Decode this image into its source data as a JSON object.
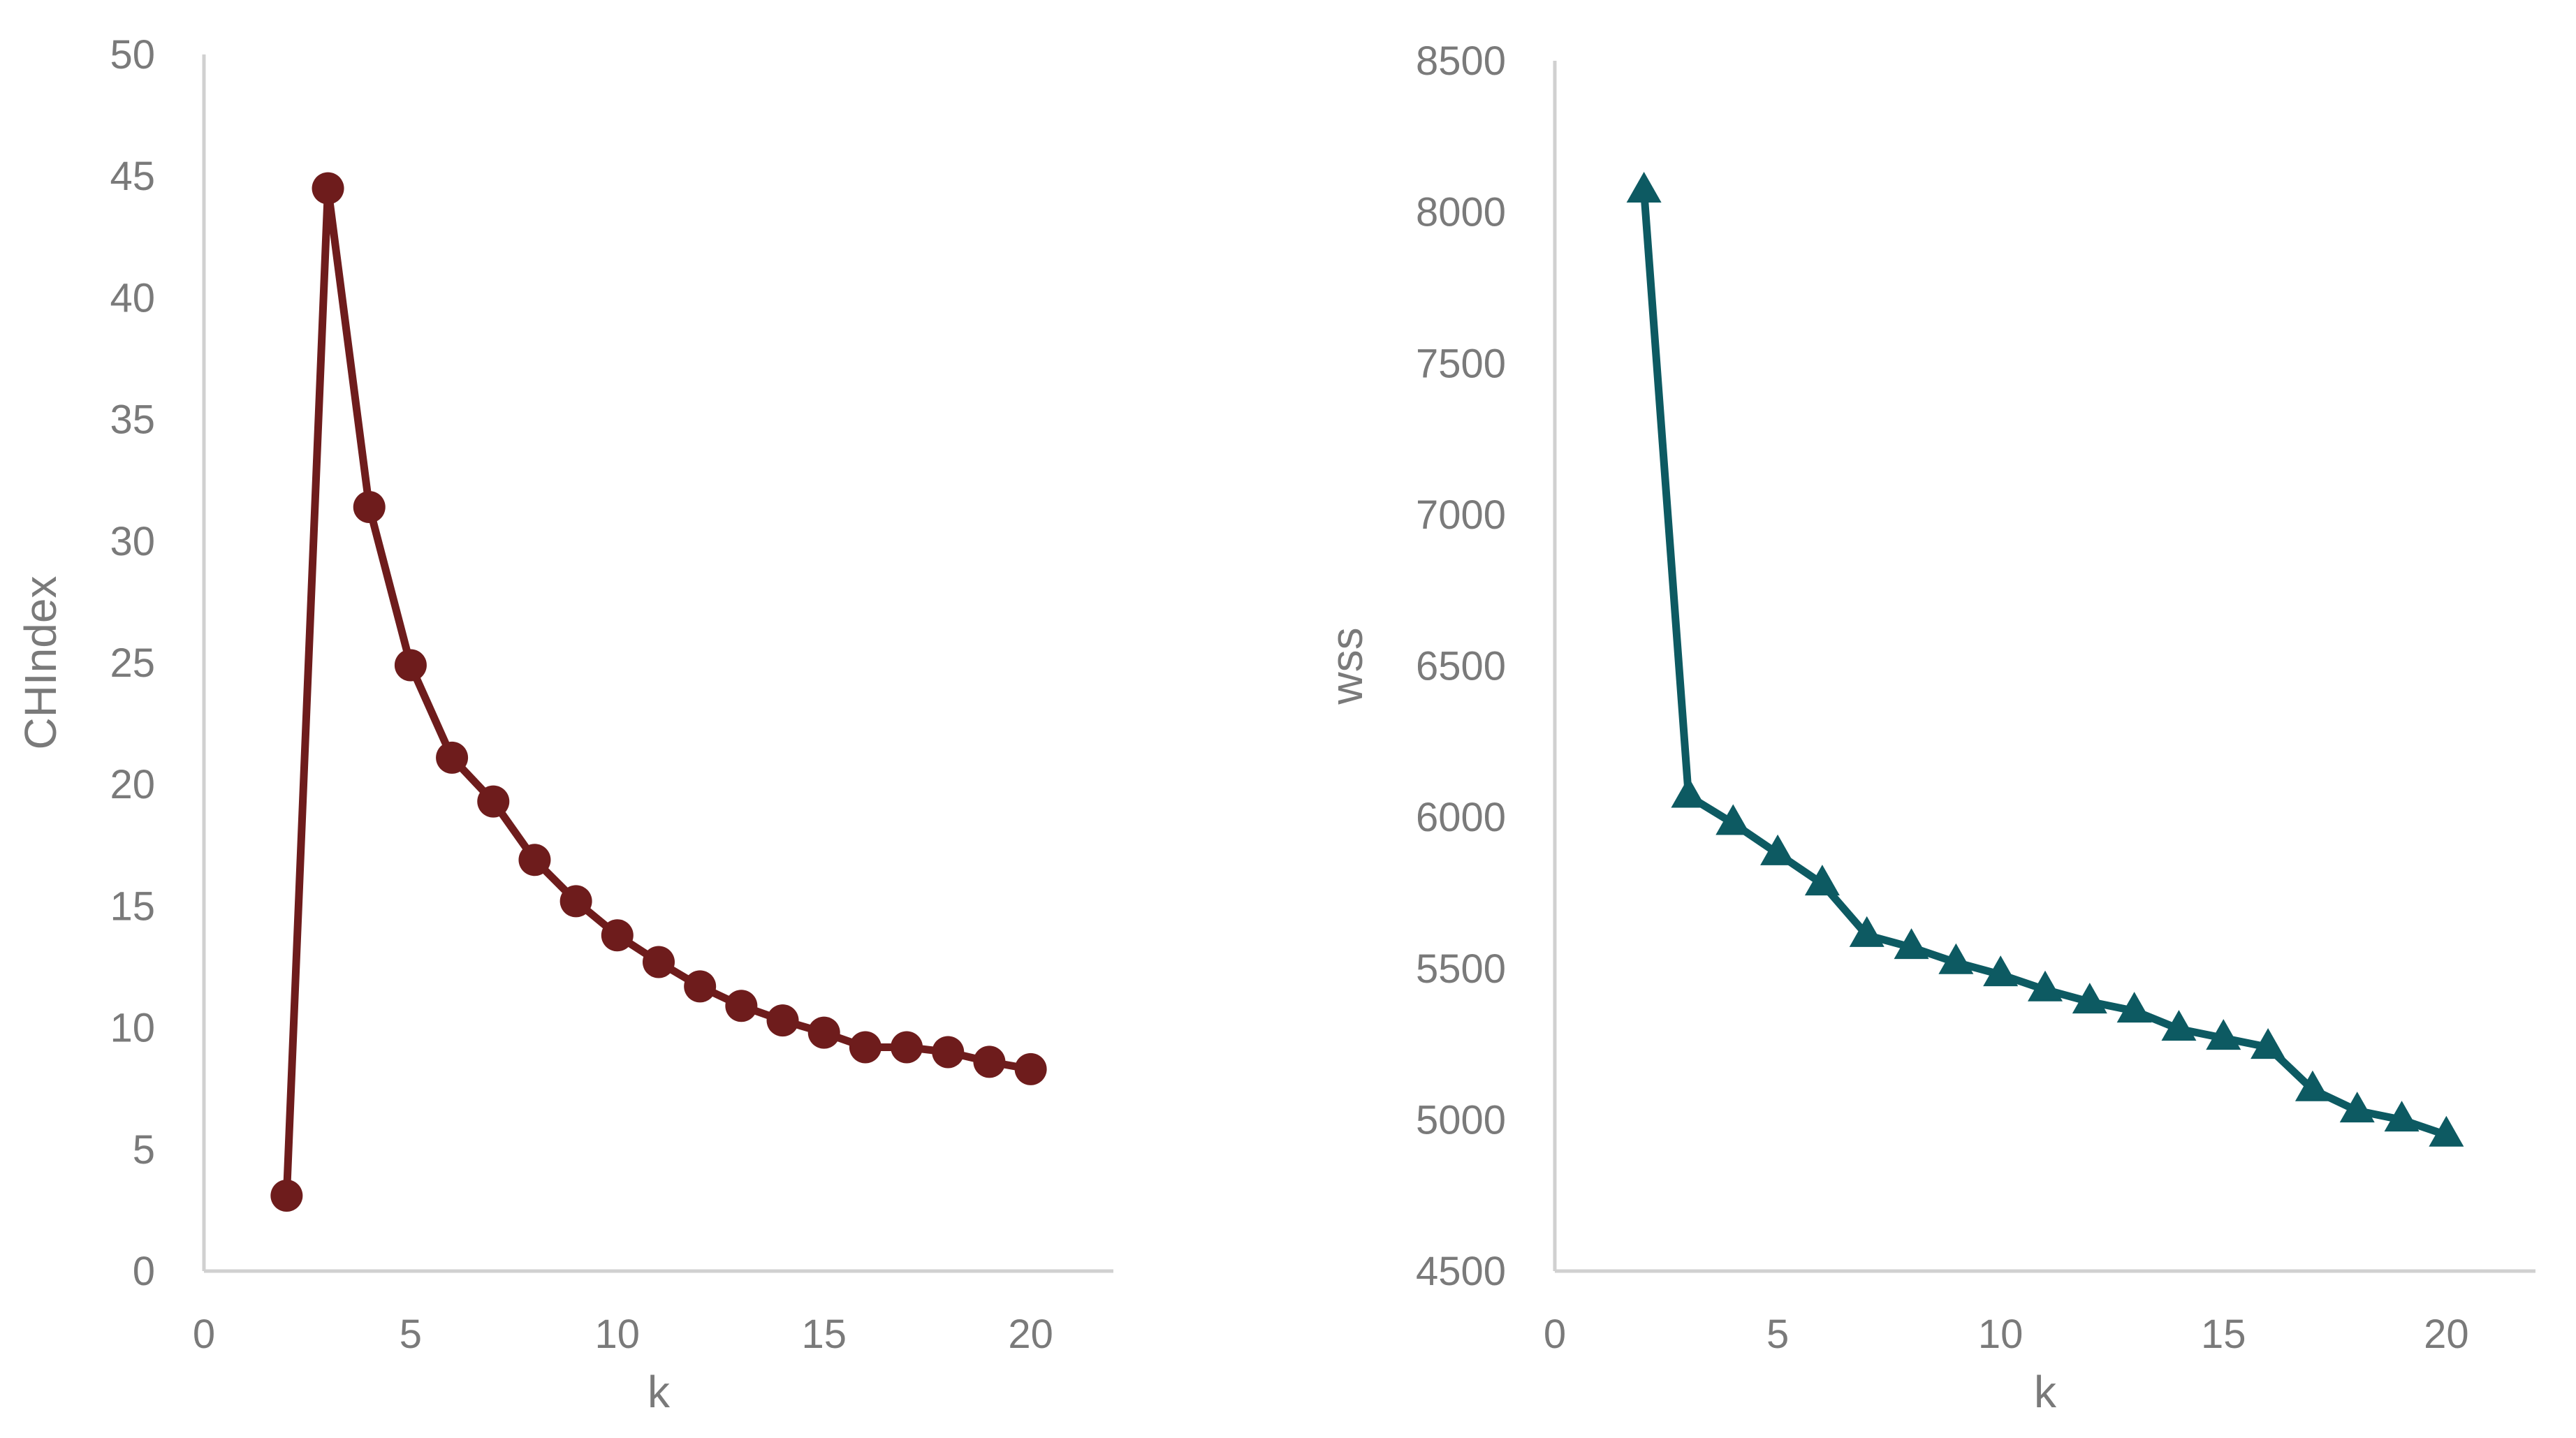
{
  "chart_data": [
    {
      "type": "line",
      "xlabel": "k",
      "ylabel": "CHIndex",
      "xlim": [
        0,
        22
      ],
      "ylim": [
        0,
        50
      ],
      "x_ticks": [
        0,
        5,
        10,
        15,
        20
      ],
      "y_ticks": [
        0,
        5,
        10,
        15,
        20,
        25,
        30,
        35,
        40,
        45,
        50
      ],
      "grid": false,
      "marker": "circle",
      "color": "#6e1c1c",
      "series": [
        {
          "x": [
            2,
            3,
            4,
            5,
            6,
            7,
            8,
            9,
            10,
            11,
            12,
            13,
            14,
            15,
            16,
            17,
            18,
            19,
            20
          ],
          "values": [
            3.1,
            44.5,
            31.4,
            24.9,
            21.1,
            19.3,
            16.9,
            15.2,
            13.8,
            12.7,
            11.7,
            10.9,
            10.3,
            9.8,
            9.2,
            9.2,
            9.0,
            8.6,
            8.3
          ]
        }
      ]
    },
    {
      "type": "line",
      "xlabel": "k",
      "ylabel": "wss",
      "xlim": [
        0,
        22
      ],
      "ylim": [
        4500,
        8500
      ],
      "x_ticks": [
        0,
        5,
        10,
        15,
        20
      ],
      "y_ticks": [
        4500,
        5000,
        5500,
        6000,
        6500,
        7000,
        7500,
        8000,
        8500
      ],
      "grid": false,
      "marker": "triangle",
      "color": "#0d5a62",
      "series": [
        {
          "x": [
            2,
            3,
            4,
            5,
            6,
            7,
            8,
            9,
            10,
            11,
            12,
            13,
            14,
            15,
            16,
            17,
            18,
            19,
            20
          ],
          "values": [
            8070,
            6070,
            5980,
            5880,
            5780,
            5610,
            5570,
            5520,
            5480,
            5430,
            5390,
            5360,
            5300,
            5270,
            5240,
            5100,
            5030,
            5000,
            4950
          ]
        }
      ]
    }
  ]
}
